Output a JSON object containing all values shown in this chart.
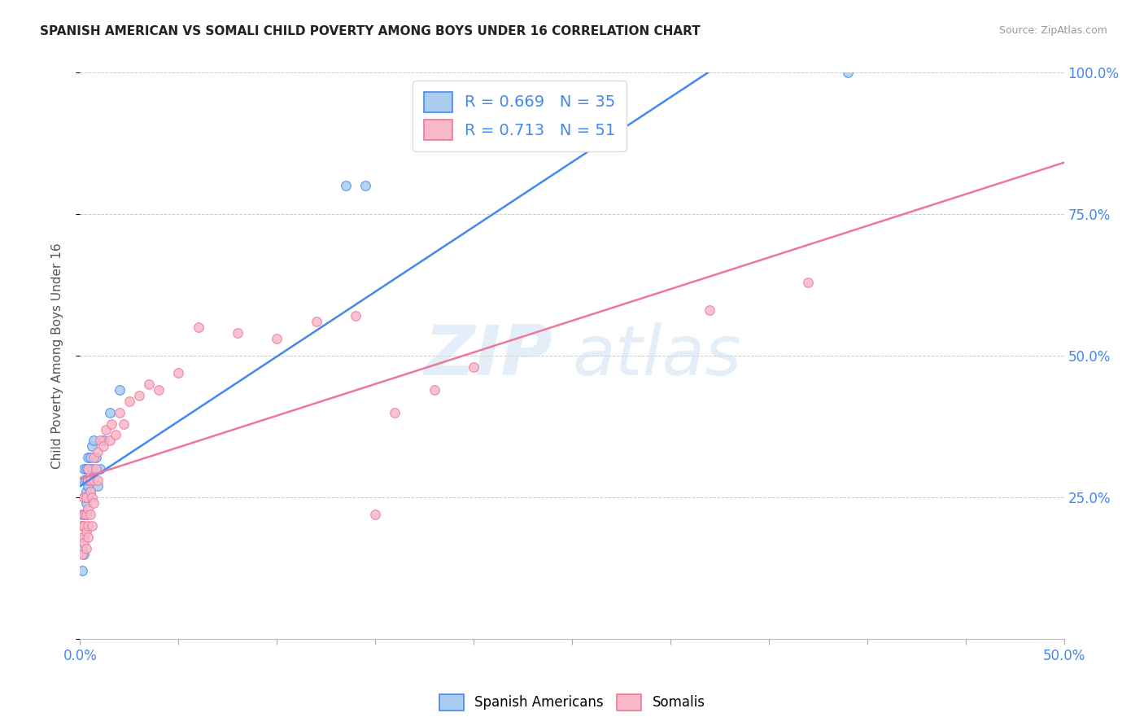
{
  "title": "SPANISH AMERICAN VS SOMALI CHILD POVERTY AMONG BOYS UNDER 16 CORRELATION CHART",
  "source": "Source: ZipAtlas.com",
  "ylabel": "Child Poverty Among Boys Under 16",
  "xlim": [
    0.0,
    0.5
  ],
  "ylim": [
    0.0,
    1.0
  ],
  "xtick_positions": [
    0.0,
    0.05,
    0.1,
    0.15,
    0.2,
    0.25,
    0.3,
    0.35,
    0.4,
    0.45,
    0.5
  ],
  "xtick_labels": [
    "0.0%",
    "",
    "",
    "",
    "",
    "",
    "",
    "",
    "",
    "",
    "50.0%"
  ],
  "ytick_positions": [
    0.0,
    0.25,
    0.5,
    0.75,
    1.0
  ],
  "ytick_labels": [
    "",
    "25.0%",
    "50.0%",
    "75.0%",
    "100.0%"
  ],
  "spanish_color": "#aaccf0",
  "somali_color": "#f8b8c8",
  "trend_blue": "#4488ee",
  "trend_pink": "#ee7799",
  "watermark_color": "#cce0f5",
  "spanish_x": [
    0.001,
    0.001,
    0.001,
    0.001,
    0.002,
    0.002,
    0.002,
    0.002,
    0.002,
    0.002,
    0.003,
    0.003,
    0.003,
    0.003,
    0.003,
    0.004,
    0.004,
    0.004,
    0.004,
    0.004,
    0.005,
    0.005,
    0.005,
    0.006,
    0.006,
    0.007,
    0.008,
    0.009,
    0.01,
    0.012,
    0.015,
    0.02,
    0.135,
    0.145,
    0.39
  ],
  "spanish_y": [
    0.2,
    0.22,
    0.16,
    0.12,
    0.25,
    0.28,
    0.3,
    0.22,
    0.18,
    0.15,
    0.26,
    0.28,
    0.24,
    0.3,
    0.22,
    0.27,
    0.3,
    0.25,
    0.32,
    0.28,
    0.29,
    0.32,
    0.26,
    0.3,
    0.34,
    0.35,
    0.32,
    0.27,
    0.3,
    0.35,
    0.4,
    0.44,
    0.8,
    0.8,
    1.0
  ],
  "somali_x": [
    0.001,
    0.001,
    0.001,
    0.002,
    0.002,
    0.002,
    0.002,
    0.003,
    0.003,
    0.003,
    0.003,
    0.004,
    0.004,
    0.004,
    0.004,
    0.004,
    0.005,
    0.005,
    0.005,
    0.006,
    0.006,
    0.007,
    0.007,
    0.007,
    0.008,
    0.009,
    0.009,
    0.01,
    0.012,
    0.013,
    0.015,
    0.016,
    0.018,
    0.02,
    0.022,
    0.025,
    0.03,
    0.035,
    0.04,
    0.05,
    0.06,
    0.08,
    0.1,
    0.12,
    0.14,
    0.15,
    0.16,
    0.18,
    0.2,
    0.32,
    0.37
  ],
  "somali_y": [
    0.18,
    0.15,
    0.2,
    0.17,
    0.2,
    0.22,
    0.25,
    0.16,
    0.19,
    0.22,
    0.25,
    0.18,
    0.2,
    0.23,
    0.28,
    0.3,
    0.22,
    0.26,
    0.28,
    0.2,
    0.25,
    0.24,
    0.28,
    0.32,
    0.3,
    0.28,
    0.33,
    0.35,
    0.34,
    0.37,
    0.35,
    0.38,
    0.36,
    0.4,
    0.38,
    0.42,
    0.43,
    0.45,
    0.44,
    0.47,
    0.55,
    0.54,
    0.53,
    0.56,
    0.57,
    0.22,
    0.4,
    0.44,
    0.48,
    0.58,
    0.63
  ]
}
